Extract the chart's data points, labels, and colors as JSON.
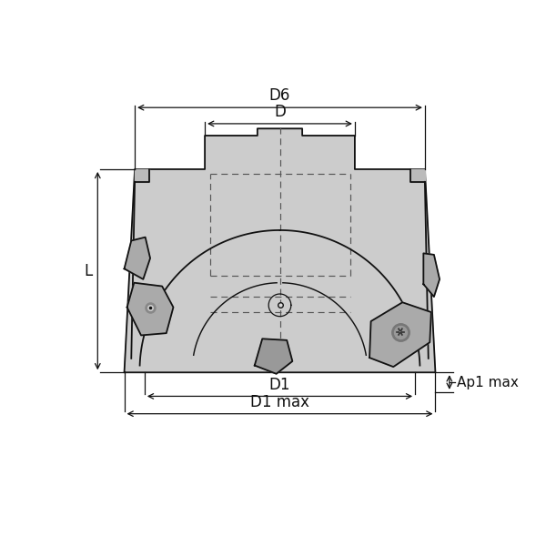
{
  "bg_color": "#ffffff",
  "body_fill": "#cccccc",
  "body_fill2": "#bbbbbb",
  "body_edge": "#111111",
  "dashed_color": "#555555",
  "dim_color": "#111111",
  "text_color": "#111111",
  "insert_fill": "#999999",
  "insert_fill2": "#aaaaaa",
  "insert_fill3": "#888888",
  "labels": {
    "D6": "D6",
    "D": "D",
    "D1": "D1",
    "D1max": "D1 max",
    "L": "L",
    "Ap1max": "Ap1 max"
  }
}
